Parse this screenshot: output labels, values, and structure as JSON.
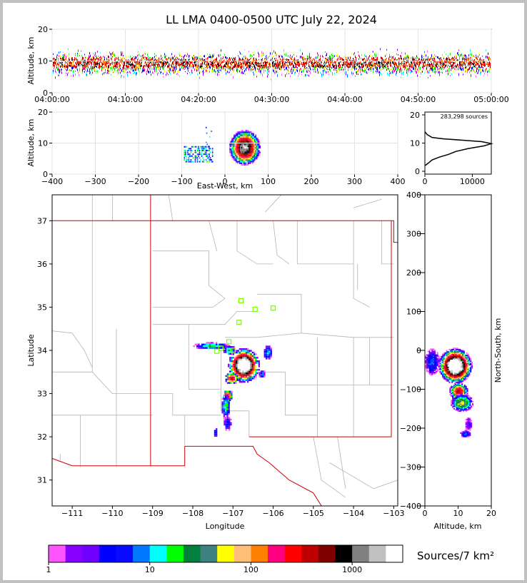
{
  "title": "LL LMA 0400-0500 UTC July 22, 2024",
  "colors": {
    "background": "#ffffff",
    "state_border": "#cc0000",
    "county_lines": "#b4b4b4",
    "station_marker": "#7cfc00"
  },
  "chart_data": [
    {
      "id": "altitude-vs-time",
      "type": "heatmap",
      "xlabel": "",
      "ylabel": "Altitude, km",
      "xlim": [
        "04:00:00",
        "05:00:00"
      ],
      "ylim": [
        0,
        20
      ],
      "x_ticks": [
        "04:00:00",
        "04:10:00",
        "04:20:00",
        "04:30:00",
        "04:40:00",
        "04:50:00",
        "05:00:00"
      ],
      "y_ticks": [
        "0",
        "10",
        "20"
      ],
      "description_values": {
        "main_band_km": [
          3,
          14
        ],
        "densest_km": [
          6,
          12
        ]
      }
    },
    {
      "id": "altitude-vs-east-west",
      "type": "heatmap",
      "xlabel": "East-West, km",
      "ylabel": "Altitude, km",
      "xlim": [
        -400,
        400
      ],
      "ylim": [
        0,
        20
      ],
      "x_ticks": [
        "−400",
        "−300",
        "−200",
        "−100",
        "0",
        "100",
        "200",
        "300",
        "400"
      ],
      "y_ticks": [
        "0",
        "10",
        "20"
      ]
    },
    {
      "id": "altitude-histogram",
      "type": "line",
      "annotation": "283,298 sources",
      "xlim": [
        0,
        14000
      ],
      "ylim": [
        -0.5,
        21
      ],
      "x_ticks": [
        "0",
        "10000"
      ],
      "y_ticks": [
        "0",
        "10",
        "20"
      ],
      "points": [
        [
          0,
          2
        ],
        [
          800,
          3
        ],
        [
          1500,
          4
        ],
        [
          3000,
          5
        ],
        [
          5000,
          6
        ],
        [
          6500,
          7
        ],
        [
          9000,
          8
        ],
        [
          12500,
          9
        ],
        [
          14000,
          9.8
        ],
        [
          12000,
          10.5
        ],
        [
          8000,
          11
        ],
        [
          4000,
          11.5
        ],
        [
          1500,
          12
        ],
        [
          500,
          13
        ],
        [
          0,
          14
        ]
      ]
    },
    {
      "id": "plan-view-map",
      "type": "heatmap",
      "xlabel": "Longitude",
      "ylabel": "Latitude",
      "xlim": [
        -111.5,
        -102.9
      ],
      "ylim": [
        30.4,
        37.6
      ],
      "x_ticks": [
        "−111",
        "−110",
        "−109",
        "−108",
        "−107",
        "−106",
        "−105",
        "−104",
        "−103"
      ],
      "y_ticks": [
        "31",
        "32",
        "33",
        "34",
        "35",
        "36",
        "37"
      ],
      "stations": [
        [
          -106.8,
          35.15
        ],
        [
          -106.45,
          34.95
        ],
        [
          -106.0,
          34.98
        ],
        [
          -106.85,
          34.65
        ],
        [
          -107.1,
          34.2
        ],
        [
          -107.3,
          34.05
        ],
        [
          -107.0,
          34.0
        ],
        [
          -107.4,
          33.98
        ]
      ]
    },
    {
      "id": "north-south-vs-altitude",
      "type": "heatmap",
      "xlabel": "Altitude, km",
      "ylabel": "North-South, km",
      "xlim": [
        0,
        20
      ],
      "ylim": [
        -400,
        400
      ],
      "x_ticks": [
        "0",
        "10",
        "20"
      ],
      "y_ticks": [
        "−400",
        "−300",
        "−200",
        "−100",
        "0",
        "100",
        "200",
        "300",
        "400"
      ]
    }
  ],
  "colorbar": {
    "label": "Sources/7 km²",
    "tick_labels": [
      "1",
      "10",
      "100",
      "1000"
    ],
    "colors": [
      "#ff55ff",
      "#8800ff",
      "#7000ff",
      "#0000ff",
      "#0a0aff",
      "#0078ff",
      "#00ffff",
      "#00ff00",
      "#00803c",
      "#3c8080",
      "#ffff00",
      "#ffbe78",
      "#ff8000",
      "#ff0080",
      "#ff0000",
      "#c00000",
      "#800000",
      "#000000",
      "#808080",
      "#c0c0c0",
      "#ffffff"
    ]
  }
}
